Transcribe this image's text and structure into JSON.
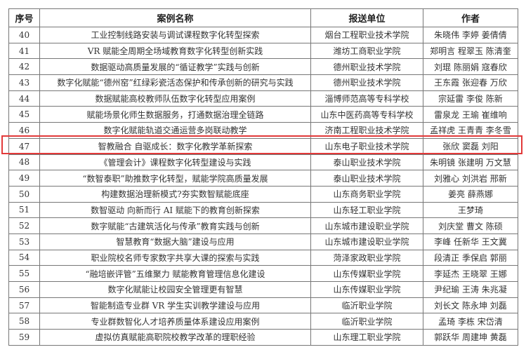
{
  "headers": {
    "no": "序号",
    "name": "案例名称",
    "unit": "报送单位",
    "author": "作者"
  },
  "highlight_color": "#e23a3a",
  "highlighted_row": "47",
  "rows": [
    {
      "no": "40",
      "name": "工业控制线路安装与调试课程数字化转型探索",
      "unit": "烟台工程职业技术学院",
      "author": "朱晓伟 李婷 姜倩倩"
    },
    {
      "no": "41",
      "name": "VR 赋能全周期全场域教育数字化转型创新实践",
      "unit": "潍坊工商职业学院",
      "author": "郑明言 程翠玉 陈清奎"
    },
    {
      "no": "42",
      "name": "数据驱动高质量发展的“循证教学”实践与创新",
      "unit": "德州职业技术学院",
      "author": "刘琨 陈丽娟 寇春欣"
    },
    {
      "no": "43",
      "name": "数字化赋能“德州窑”红绿彩瓷活态保护和传承创新的研究与实践",
      "unit": "德州职业技术学院",
      "author": "王东霞 张迎春 万欣"
    },
    {
      "no": "44",
      "name": "数据赋能高校教师队伍数字化转型应用案例",
      "unit": "淄博师范高等专科学校",
      "author": "宗延雷 李俊 陈新"
    },
    {
      "no": "45",
      "name": "赋能场景化师生数据服务，打通数据治理全链路",
      "unit": "山东中医药高等专科学校",
      "author": "雷泉龙 王瑜 崔维响"
    },
    {
      "no": "46",
      "name": "数字化赋能轨道交通运营多岗联动教学",
      "unit": "济南工程职业技术学院",
      "author": "孟祥虎 王青青 李冬雪"
    },
    {
      "no": "47",
      "name": "智教融合 自驱成长：数字化教学革新探索",
      "unit": "山东电子职业技术学院",
      "author": "张欣 窦磊 刘阳"
    },
    {
      "no": "48",
      "name": "《管理会计》课程数字化转型建设与实践",
      "unit": "泰山职业技术学院",
      "author": "朱明镜 张建明 万文慧"
    },
    {
      "no": "49",
      "name": "“数智泰职”助推数字化转型，赋能学院高质量发展",
      "unit": "泰山职业技术学院",
      "author": "刘雅心 刘洪岩 邢新"
    },
    {
      "no": "50",
      "name": "构建数据治理新模式?夯实数智赋能底座",
      "unit": "山东商务职业学院",
      "author": "姜亮 薛燕娜"
    },
    {
      "no": "51",
      "name": "数智驱动 向新而行 AI 赋能下的教育创新探索",
      "unit": "山东轻工职业学院",
      "author": "王梦琦"
    },
    {
      "no": "52",
      "name": "数字赋能“古建筑活化与传承”教育实践与创新",
      "unit": "山东城市建设职业学院",
      "author": "刘庆堂 曹文 陈硕"
    },
    {
      "no": "53",
      "name": "智慧教育“数据大脑”建设与应用",
      "unit": "山东城市建设职业学院",
      "author": "李峰 任新华 王文冀"
    },
    {
      "no": "54",
      "name": "职业院校名师专家数字共享大课的探索与实践",
      "unit": "菏泽家政职业学院",
      "author": "段清正 季保启 郭丽"
    },
    {
      "no": "55",
      "name": "“融培嵌评管”五维聚力 赋能教育管理信息化建设",
      "unit": "山东传媒职业学院",
      "author": "李延杰 王晓翠 王娜"
    },
    {
      "no": "56",
      "name": "数字化赋能让校园安全管理更有智慧",
      "unit": "山东传媒职业学院",
      "author": "尹纪瑜 王涛 朱兆凝"
    },
    {
      "no": "57",
      "name": "智能制造专业群 VR 学生实训教学建设与应用",
      "unit": "临沂职业学院",
      "author": "刘长文 陈永坤 刘磊"
    },
    {
      "no": "58",
      "name": "专业群数智化人才培养质量体系建设应用案例",
      "unit": "临沂职业学院",
      "author": "孟琦 李栋 宋岱清"
    },
    {
      "no": "59",
      "name": "虚拟仿真赋能高职院校教学改革的理职经验",
      "unit": "山东理工职业学院",
      "author": "郭跃华 周建坤 黄磊"
    }
  ]
}
